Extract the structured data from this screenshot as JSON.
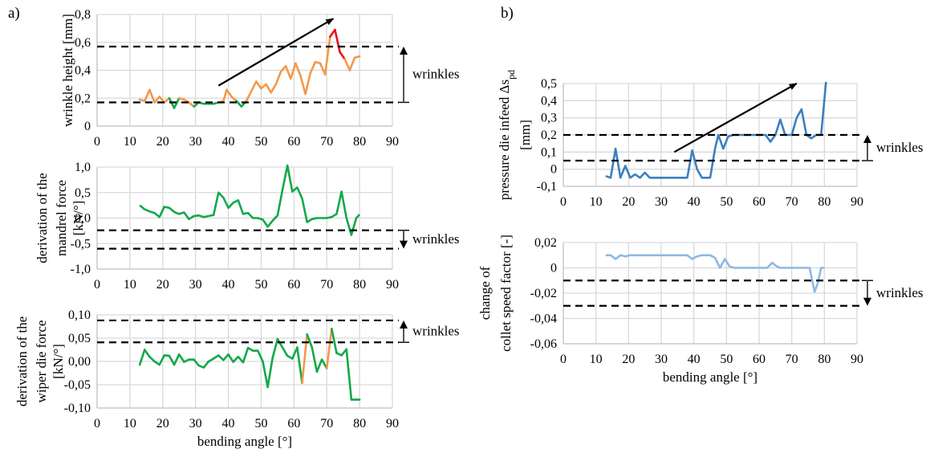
{
  "panels": [
    {
      "id": "a",
      "label": "a)"
    },
    {
      "id": "b",
      "label": "b)"
    }
  ],
  "chart_data": [
    {
      "panel": "a",
      "type": "line",
      "title": "",
      "ylabel": [
        "wrinkle height [mm]"
      ],
      "xlabel": "",
      "xlim": [
        0,
        90
      ],
      "ylim": [
        0,
        0.8
      ],
      "xticks": [
        "0",
        "10",
        "20",
        "30",
        "40",
        "50",
        "60",
        "70",
        "80",
        "90"
      ],
      "yticks": [
        {
          "v": 0,
          "t": "0"
        },
        {
          "v": 0.2,
          "t": "0,2"
        },
        {
          "v": 0.4,
          "t": "0,4"
        },
        {
          "v": 0.6,
          "t": "0,6"
        },
        {
          "v": 0.8,
          "t": "0,8"
        }
      ],
      "grid": true,
      "thresholds": [
        0.57,
        0.17
      ],
      "annotation": {
        "text": "wrinkles",
        "direction": "up"
      },
      "trend_arrow": {
        "from": [
          37,
          0.29
        ],
        "to": [
          72,
          0.77
        ]
      },
      "series": [
        {
          "name": "wrinkle height",
          "color_normal": "#f2994a",
          "color_low": "#13a84a",
          "color_high": "#e8141c",
          "x": [
            13,
            14.5,
            16,
            17.5,
            19,
            20.5,
            22,
            23.5,
            25,
            26.5,
            28,
            29.5,
            31,
            32.5,
            34,
            35.5,
            37,
            38.5,
            39.5,
            41,
            42.5,
            44,
            45.5,
            47,
            48.5,
            50,
            51.5,
            53,
            54.5,
            56,
            57.5,
            59,
            60.5,
            62,
            63.5,
            65,
            66.5,
            68,
            69.5,
            71,
            72.5,
            74,
            75.5,
            77,
            78.5,
            80
          ],
          "y": [
            0.19,
            0.18,
            0.26,
            0.17,
            0.21,
            0.17,
            0.2,
            0.13,
            0.2,
            0.19,
            0.17,
            0.14,
            0.17,
            0.16,
            0.16,
            0.16,
            0.17,
            0.18,
            0.26,
            0.21,
            0.18,
            0.14,
            0.18,
            0.25,
            0.32,
            0.27,
            0.3,
            0.24,
            0.3,
            0.39,
            0.43,
            0.34,
            0.45,
            0.36,
            0.23,
            0.38,
            0.46,
            0.45,
            0.37,
            0.64,
            0.69,
            0.53,
            0.48,
            0.4,
            0.49,
            0.5
          ],
          "segment_colors": [
            "n",
            "n",
            "n",
            "n",
            "n",
            "n",
            "l",
            "l",
            "n",
            "n",
            "n",
            "l",
            "l",
            "l",
            "l",
            "l",
            "n",
            "n",
            "n",
            "n",
            "l",
            "l",
            "n",
            "n",
            "n",
            "n",
            "n",
            "n",
            "n",
            "n",
            "n",
            "n",
            "n",
            "n",
            "n",
            "n",
            "n",
            "n",
            "n",
            "h",
            "h",
            "h",
            "n",
            "n",
            "n"
          ]
        }
      ]
    },
    {
      "panel": "a",
      "type": "line",
      "ylabel": [
        "derivation of the",
        "mandrel force",
        "[kN/°]"
      ],
      "xlabel": "",
      "xlim": [
        0,
        90
      ],
      "ylim": [
        -1.0,
        1.0
      ],
      "xticks": [
        "0",
        "10",
        "20",
        "30",
        "40",
        "50",
        "60",
        "70",
        "80",
        "90"
      ],
      "yticks": [
        {
          "v": -1.0,
          "t": "-1,0"
        },
        {
          "v": -0.5,
          "t": "-0,5"
        },
        {
          "v": 0,
          "t": "0,0"
        },
        {
          "v": 0.5,
          "t": "0,5"
        },
        {
          "v": 1.0,
          "t": "1,0"
        }
      ],
      "grid": true,
      "thresholds": [
        -0.24,
        -0.6
      ],
      "annotation": {
        "text": "wrinkles",
        "direction": "down"
      },
      "series": [
        {
          "name": "mandrel force derivation",
          "color": "#13a84a",
          "x": [
            13,
            14.5,
            16,
            17.5,
            19,
            20.5,
            22,
            23.5,
            25,
            26.5,
            28,
            29.5,
            31,
            32.5,
            34,
            35.5,
            37,
            38.5,
            40,
            41.5,
            43,
            44.5,
            46,
            47.5,
            49,
            50.5,
            52,
            53.5,
            55,
            56.5,
            58,
            59.5,
            61,
            62.5,
            64,
            65.5,
            67,
            68.5,
            70,
            71.5,
            73,
            74.5,
            76,
            77.5,
            79,
            80
          ],
          "y": [
            0.25,
            0.17,
            0.13,
            0.1,
            0.02,
            0.22,
            0.2,
            0.12,
            0.08,
            0.11,
            -0.02,
            0.04,
            0.05,
            0.02,
            0.04,
            0.06,
            0.5,
            0.4,
            0.2,
            0.3,
            0.35,
            0.08,
            0.1,
            0.0,
            0.0,
            -0.03,
            -0.17,
            -0.05,
            0.05,
            0.55,
            1.05,
            0.52,
            0.6,
            0.38,
            -0.08,
            -0.02,
            0.0,
            0.0,
            0.0,
            0.02,
            0.08,
            0.52,
            0.0,
            -0.33,
            0.0,
            0.07
          ]
        }
      ]
    },
    {
      "panel": "a",
      "type": "line",
      "ylabel": [
        "derivation of the",
        "wiper die force",
        "[kN/°]"
      ],
      "xlabel": "bending angle [°]",
      "xlim": [
        0,
        90
      ],
      "ylim": [
        -0.1,
        0.1
      ],
      "xticks": [
        "0",
        "10",
        "20",
        "30",
        "40",
        "50",
        "60",
        "70",
        "80",
        "90"
      ],
      "yticks": [
        {
          "v": -0.1,
          "t": "-0,10"
        },
        {
          "v": -0.05,
          "t": "-0,05"
        },
        {
          "v": 0,
          "t": "0,00"
        },
        {
          "v": 0.05,
          "t": "0,05"
        },
        {
          "v": 0.1,
          "t": "0,10"
        }
      ],
      "grid": true,
      "thresholds": [
        0.088,
        0.041
      ],
      "annotation": {
        "text": "wrinkles",
        "direction": "up"
      },
      "series": [
        {
          "name": "wiper die force derivation",
          "color_normal": "#13a84a",
          "color_high": "#f2994a",
          "x": [
            13,
            14.5,
            16,
            17.5,
            19,
            20.5,
            22,
            23.5,
            25,
            26.5,
            28,
            29.5,
            31,
            32.5,
            34,
            35.5,
            37,
            38.5,
            40,
            41.5,
            43,
            44.5,
            46,
            47.5,
            49,
            50.5,
            52,
            53.5,
            55,
            56.5,
            58,
            59.5,
            61,
            62.5,
            64,
            65.5,
            67,
            68.5,
            70,
            71.5,
            73,
            74.5,
            76,
            77.5,
            79,
            80
          ],
          "y": [
            -0.007,
            0.025,
            0.01,
            0.0,
            -0.007,
            0.013,
            0.012,
            -0.007,
            0.015,
            -0.001,
            0.004,
            0.004,
            -0.009,
            -0.013,
            0.0,
            0.006,
            0.013,
            0.003,
            0.015,
            -0.001,
            0.01,
            -0.002,
            0.029,
            0.023,
            0.023,
            0.0,
            -0.055,
            0.008,
            0.048,
            0.03,
            0.012,
            0.006,
            0.03,
            -0.046,
            0.058,
            0.03,
            -0.022,
            0.004,
            -0.015,
            0.07,
            0.018,
            0.013,
            0.026,
            -0.082,
            -0.082,
            -0.082
          ],
          "segment_colors": [
            "n",
            "n",
            "n",
            "n",
            "n",
            "n",
            "n",
            "n",
            "n",
            "n",
            "n",
            "n",
            "n",
            "n",
            "n",
            "n",
            "n",
            "n",
            "n",
            "n",
            "n",
            "n",
            "n",
            "n",
            "n",
            "n",
            "n",
            "n",
            "n",
            "n",
            "n",
            "n",
            "n",
            "h",
            "n",
            "n",
            "n",
            "n",
            "h",
            "n",
            "n",
            "n",
            "n",
            "n",
            "n"
          ]
        }
      ]
    },
    {
      "panel": "b",
      "type": "line",
      "ylabel": [
        "pressure die infeed Δs",
        "[mm]"
      ],
      "ylabel_sub": "pd",
      "xlabel": "",
      "xlim": [
        0,
        90
      ],
      "ylim": [
        -0.1,
        0.5
      ],
      "xticks": [
        "0",
        "10",
        "20",
        "30",
        "40",
        "50",
        "60",
        "70",
        "80",
        "90"
      ],
      "yticks": [
        {
          "v": -0.1,
          "t": "-0,1"
        },
        {
          "v": 0,
          "t": "0"
        },
        {
          "v": 0.1,
          "t": "0,1"
        },
        {
          "v": 0.2,
          "t": "0,2"
        },
        {
          "v": 0.3,
          "t": "0,3"
        },
        {
          "v": 0.4,
          "t": "0,4"
        },
        {
          "v": 0.5,
          "t": "0,5"
        }
      ],
      "grid": true,
      "thresholds": [
        0.2,
        0.05
      ],
      "annotation": {
        "text": "wrinkles",
        "direction": "up"
      },
      "trend_arrow": {
        "from": [
          34,
          0.1
        ],
        "to": [
          71.5,
          0.5
        ]
      },
      "series": [
        {
          "name": "pressure die infeed",
          "color": "#3c7fc0",
          "x": [
            13,
            14.5,
            16,
            17.5,
            19,
            20.5,
            22,
            23.5,
            25,
            26.5,
            28,
            38,
            39.5,
            41,
            42.5,
            45,
            46.5,
            47.5,
            49,
            50.5,
            52,
            53.5,
            60,
            62,
            63.5,
            65,
            66.5,
            68,
            70,
            71.5,
            73,
            74.5,
            76,
            77.5,
            79,
            80.5
          ],
          "y": [
            -0.04,
            -0.05,
            0.12,
            -0.05,
            0.02,
            -0.05,
            -0.03,
            -0.05,
            -0.02,
            -0.05,
            -0.05,
            -0.05,
            0.11,
            0.0,
            -0.05,
            -0.05,
            0.12,
            0.2,
            0.12,
            0.19,
            0.2,
            0.2,
            0.2,
            0.2,
            0.16,
            0.2,
            0.29,
            0.2,
            0.2,
            0.3,
            0.35,
            0.2,
            0.18,
            0.2,
            0.2,
            0.52
          ]
        }
      ]
    },
    {
      "panel": "b",
      "type": "line",
      "ylabel": [
        "change of",
        "collet speed factor [-]"
      ],
      "xlabel": "bending angle [°]",
      "xlim": [
        0,
        90
      ],
      "ylim": [
        -0.06,
        0.02
      ],
      "xticks": [
        "0",
        "10",
        "20",
        "30",
        "40",
        "50",
        "60",
        "70",
        "80",
        "90"
      ],
      "yticks": [
        {
          "v": -0.06,
          "t": "-0,06"
        },
        {
          "v": -0.04,
          "t": "-0,04"
        },
        {
          "v": -0.02,
          "t": "-0,02"
        },
        {
          "v": 0,
          "t": "0"
        },
        {
          "v": 0.02,
          "t": "0,02"
        }
      ],
      "grid": true,
      "thresholds": [
        -0.01,
        -0.03
      ],
      "annotation": {
        "text": "wrinkles",
        "direction": "down"
      },
      "series": [
        {
          "name": "collet speed factor change",
          "color": "#8fb8e3",
          "x": [
            13,
            14.5,
            16,
            17.5,
            19,
            20.5,
            22,
            38,
            39.5,
            41,
            42.5,
            45,
            46.5,
            48,
            49.5,
            51,
            52.5,
            54,
            62.5,
            64,
            65.5,
            66.5,
            75.5,
            77,
            78,
            79,
            80
          ],
          "y": [
            0.01,
            0.01,
            0.007,
            0.01,
            0.009,
            0.01,
            0.01,
            0.01,
            0.007,
            0.009,
            0.01,
            0.01,
            0.008,
            0.0,
            0.007,
            0.001,
            0.0,
            0.0,
            0.0,
            0.004,
            0.001,
            0.0,
            0.0,
            -0.019,
            -0.012,
            0.0,
            0.0
          ]
        }
      ]
    }
  ]
}
